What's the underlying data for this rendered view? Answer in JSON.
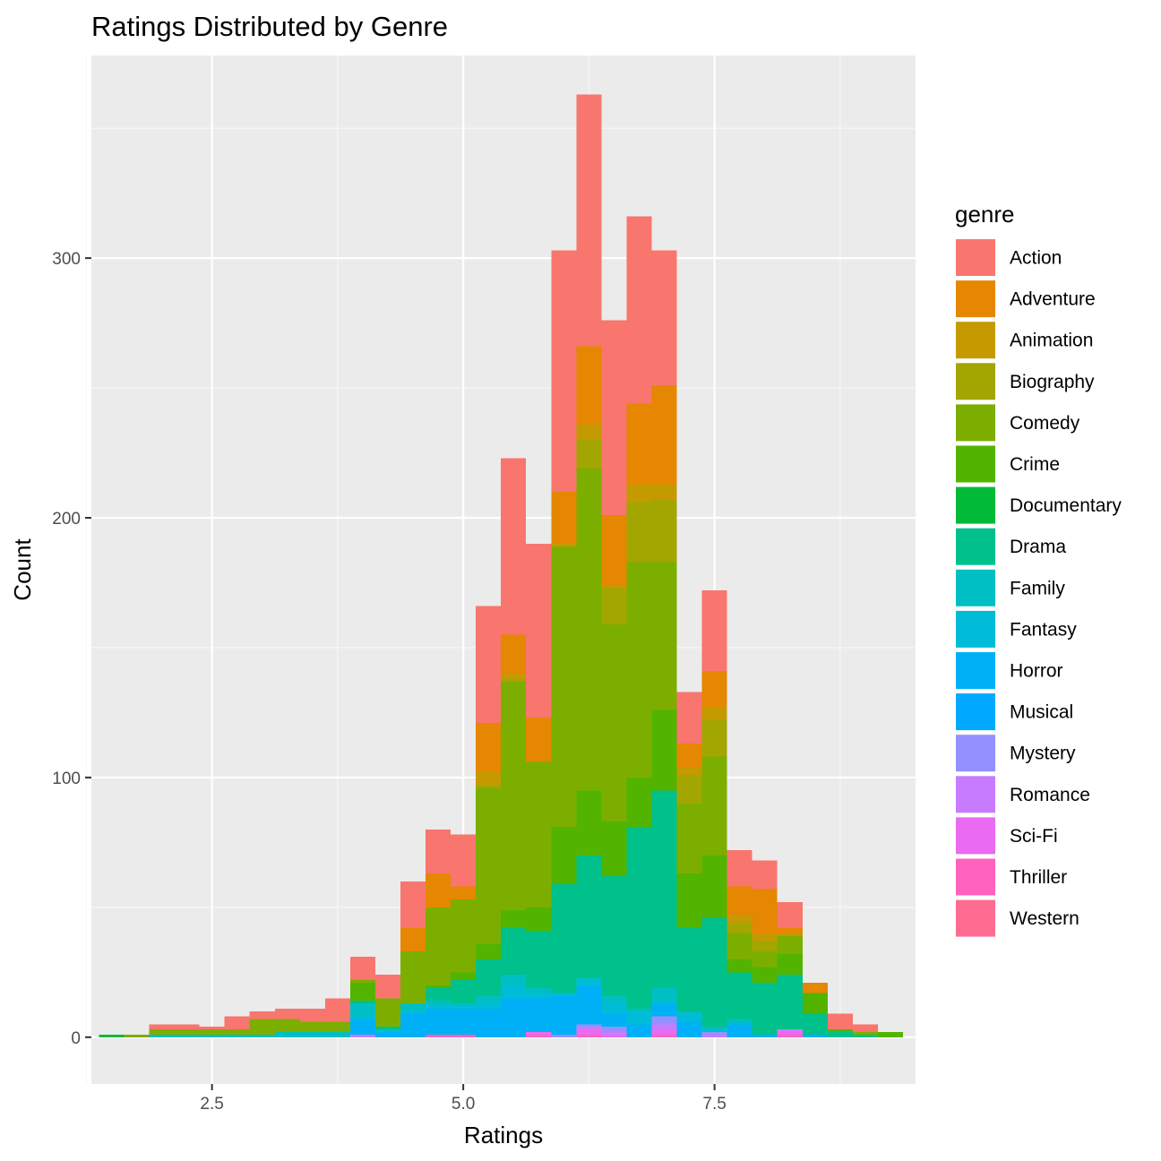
{
  "chart_data": {
    "type": "bar",
    "stacked": true,
    "title": "Ratings Distributed by Genre",
    "xlabel": "Ratings",
    "ylabel": "Count",
    "xlim": [
      1.3,
      9.5
    ],
    "ylim": [
      -18,
      378
    ],
    "x_ticks": [
      {
        "value": 2.5,
        "label": "2.5"
      },
      {
        "value": 5.0,
        "label": "5.0"
      },
      {
        "value": 7.5,
        "label": "7.5"
      }
    ],
    "y_ticks": [
      {
        "value": 0,
        "label": "0"
      },
      {
        "value": 100,
        "label": "100"
      },
      {
        "value": 200,
        "label": "200"
      },
      {
        "value": 300,
        "label": "300"
      }
    ],
    "grid": true,
    "legend_title": "genre",
    "legend_position": "right",
    "bin_width": 0.25,
    "x": [
      1.5,
      1.75,
      2.0,
      2.25,
      2.5,
      2.75,
      3.0,
      3.25,
      3.5,
      3.75,
      4.0,
      4.25,
      4.5,
      4.75,
      5.0,
      5.25,
      5.5,
      5.75,
      6.0,
      6.25,
      6.5,
      6.75,
      7.0,
      7.25,
      7.5,
      7.75,
      8.0,
      8.25,
      8.5,
      8.75,
      9.0,
      9.25
    ],
    "series": [
      {
        "name": "Western",
        "color": "#FF6C91",
        "values": [
          0,
          0,
          0,
          0,
          0,
          0,
          0,
          0,
          0,
          0,
          0,
          0,
          0,
          0,
          0,
          0,
          0,
          0,
          0,
          0,
          0,
          0,
          0,
          0,
          0,
          0,
          0,
          0,
          0,
          0,
          0,
          0
        ]
      },
      {
        "name": "Thriller",
        "color": "#FF62BC",
        "values": [
          0,
          0,
          0,
          0,
          0,
          0,
          0,
          0,
          0,
          0,
          0,
          0,
          0,
          1,
          1,
          0,
          0,
          1,
          0,
          1,
          0,
          0,
          1,
          0,
          0,
          0,
          0,
          1,
          0,
          0,
          0,
          0
        ]
      },
      {
        "name": "Sci-Fi",
        "color": "#EA6AF1",
        "values": [
          0,
          0,
          0,
          0,
          0,
          0,
          0,
          0,
          0,
          0,
          0,
          0,
          0,
          0,
          0,
          0,
          0,
          1,
          0,
          2,
          1,
          0,
          2,
          0,
          0,
          0,
          0,
          1,
          0,
          0,
          0,
          0
        ]
      },
      {
        "name": "Romance",
        "color": "#C77CFF",
        "values": [
          0,
          0,
          0,
          0,
          0,
          0,
          0,
          0,
          0,
          0,
          1,
          0,
          0,
          0,
          0,
          0,
          0,
          0,
          0,
          1,
          1,
          0,
          2,
          0,
          1,
          0,
          0,
          1,
          0,
          0,
          0,
          0
        ]
      },
      {
        "name": "Mystery",
        "color": "#9590FF",
        "values": [
          0,
          0,
          0,
          0,
          0,
          0,
          0,
          0,
          0,
          0,
          0,
          0,
          0,
          0,
          0,
          0,
          0,
          0,
          1,
          1,
          2,
          0,
          3,
          0,
          1,
          0,
          0,
          0,
          0,
          0,
          0,
          0
        ]
      },
      {
        "name": "Musical",
        "color": "#00A9FF",
        "values": [
          0,
          0,
          0,
          0,
          0,
          0,
          0,
          0,
          0,
          0,
          0,
          0,
          0,
          0,
          0,
          0,
          0,
          0,
          0,
          0,
          0,
          0,
          0,
          0,
          0,
          0,
          0,
          0,
          0,
          0,
          0,
          0
        ]
      },
      {
        "name": "Horror",
        "color": "#00B0F6",
        "values": [
          0,
          0,
          0,
          0,
          0,
          0,
          0,
          0,
          0,
          0,
          6,
          2,
          9,
          10,
          10,
          11,
          15,
          13,
          15,
          15,
          5,
          5,
          5,
          6,
          0,
          5,
          1,
          0,
          1,
          0,
          0,
          0
        ]
      },
      {
        "name": "Fantasy",
        "color": "#00BCD8",
        "values": [
          0,
          0,
          0,
          0,
          0,
          0,
          0,
          0,
          0,
          0,
          1,
          0,
          1,
          1,
          1,
          2,
          5,
          2,
          1,
          2,
          4,
          5,
          1,
          3,
          1,
          0,
          0,
          0,
          0,
          0,
          0,
          0
        ]
      },
      {
        "name": "Family",
        "color": "#00BFC4",
        "values": [
          0,
          0,
          1,
          1,
          1,
          1,
          1,
          2,
          2,
          2,
          5,
          1,
          3,
          2,
          1,
          3,
          4,
          2,
          0,
          1,
          3,
          1,
          5,
          1,
          1,
          2,
          0,
          0,
          0,
          0,
          0,
          0
        ]
      },
      {
        "name": "Drama",
        "color": "#00C08B",
        "values": [
          0,
          0,
          0,
          0,
          0,
          0,
          0,
          0,
          0,
          0,
          1,
          1,
          0,
          5,
          9,
          14,
          18,
          22,
          42,
          47,
          46,
          70,
          76,
          32,
          42,
          18,
          20,
          21,
          8,
          2,
          1,
          0
        ]
      },
      {
        "name": "Documentary",
        "color": "#00BA38",
        "values": [
          1,
          0,
          0,
          0,
          0,
          0,
          0,
          0,
          0,
          0,
          0,
          0,
          0,
          0,
          0,
          0,
          0,
          0,
          0,
          0,
          0,
          0,
          0,
          0,
          0,
          0,
          0,
          0,
          0,
          0,
          0,
          0
        ]
      },
      {
        "name": "Crime",
        "color": "#53B400",
        "values": [
          0,
          0,
          0,
          0,
          0,
          0,
          0,
          0,
          0,
          0,
          7,
          0,
          0,
          1,
          3,
          6,
          7,
          9,
          22,
          25,
          21,
          19,
          31,
          21,
          24,
          5,
          6,
          8,
          8,
          1,
          0,
          2
        ]
      },
      {
        "name": "Comedy",
        "color": "#7CAE00",
        "values": [
          0,
          1,
          2,
          2,
          2,
          2,
          6,
          5,
          4,
          4,
          1,
          11,
          20,
          30,
          28,
          60,
          88,
          56,
          108,
          124,
          76,
          83,
          57,
          27,
          38,
          10,
          6,
          7,
          0,
          0,
          1,
          0
        ]
      },
      {
        "name": "Biography",
        "color": "#A3A500",
        "values": [
          0,
          0,
          0,
          0,
          0,
          0,
          0,
          0,
          0,
          0,
          0,
          0,
          0,
          0,
          0,
          1,
          1,
          0,
          0,
          11,
          14,
          23,
          24,
          11,
          14,
          4,
          4,
          0,
          0,
          0,
          0,
          0
        ]
      },
      {
        "name": "Animation",
        "color": "#C49A00",
        "values": [
          0,
          0,
          0,
          0,
          0,
          0,
          0,
          0,
          0,
          0,
          0,
          0,
          0,
          0,
          0,
          5,
          2,
          0,
          1,
          6,
          1,
          7,
          6,
          3,
          5,
          3,
          3,
          1,
          0,
          0,
          0,
          0
        ]
      },
      {
        "name": "Adventure",
        "color": "#E58700",
        "values": [
          0,
          0,
          0,
          0,
          0,
          0,
          0,
          0,
          0,
          0,
          0,
          0,
          9,
          13,
          5,
          19,
          15,
          17,
          20,
          30,
          27,
          31,
          38,
          9,
          14,
          11,
          17,
          2,
          4,
          0,
          0,
          0
        ]
      },
      {
        "name": "Action",
        "color": "#F8766D",
        "values": [
          0,
          0,
          2,
          2,
          1,
          5,
          3,
          4,
          5,
          9,
          9,
          9,
          18,
          17,
          20,
          45,
          68,
          67,
          93,
          97,
          75,
          72,
          52,
          20,
          31,
          14,
          11,
          10,
          0,
          6,
          3,
          0
        ]
      }
    ]
  }
}
